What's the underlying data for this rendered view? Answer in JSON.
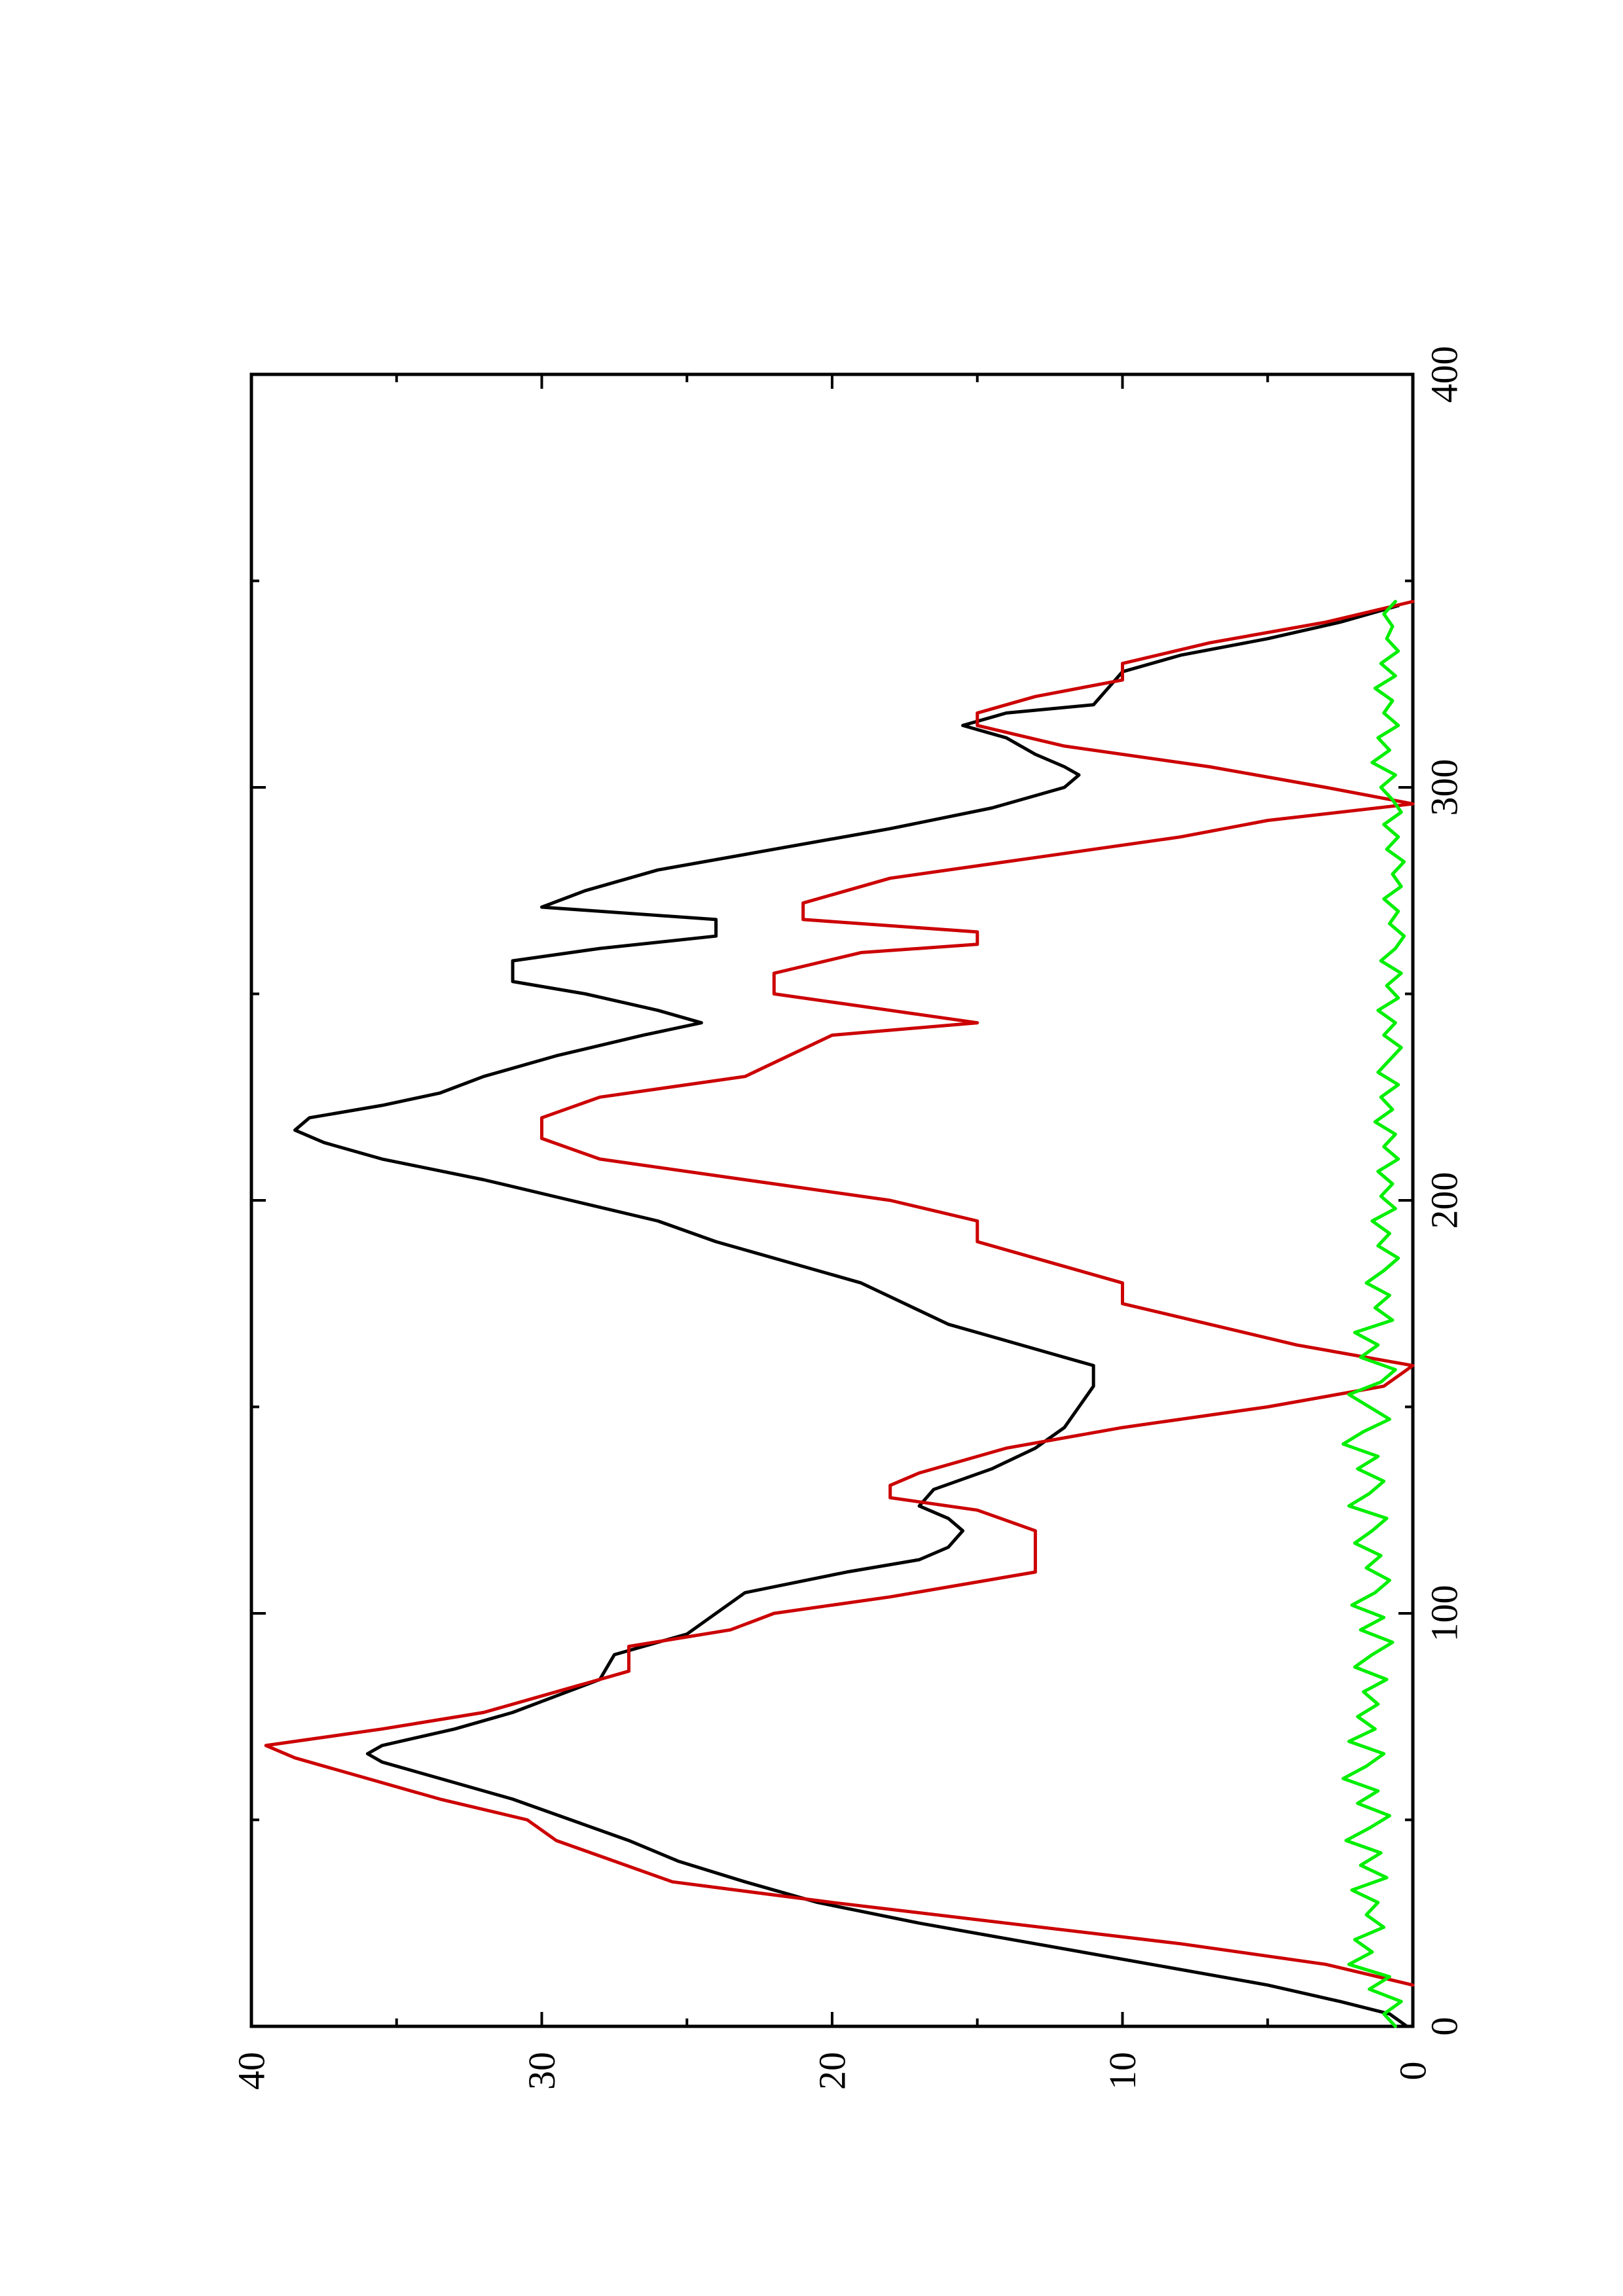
{
  "chart_data": {
    "type": "line",
    "orientation": "rotated 90 degrees counter-clockwise (page in landscape printed on portrait sheet)",
    "title": "",
    "xlabel": "",
    "ylabel": "",
    "xlim": [
      0,
      400
    ],
    "ylim": [
      0,
      40
    ],
    "x_ticks": [
      "0",
      "100",
      "200",
      "300",
      "400"
    ],
    "y_ticks": [
      "0",
      "10",
      "20",
      "30",
      "40"
    ],
    "grid": false,
    "legend": "none",
    "series": [
      {
        "color": "#000000",
        "x": [
          0,
          3,
          6,
          10,
          15,
          20,
          25,
          30,
          35,
          40,
          45,
          50,
          55,
          60,
          64,
          66,
          68,
          72,
          76,
          80,
          84,
          90,
          95,
          100,
          105,
          110,
          113,
          116,
          120,
          123,
          126,
          130,
          135,
          140,
          145,
          150,
          155,
          160,
          163,
          166,
          170,
          175,
          180,
          185,
          190,
          195,
          200,
          205,
          210,
          214,
          217,
          220,
          223,
          226,
          230,
          235,
          240,
          243,
          246,
          250,
          253,
          258,
          261,
          264,
          268,
          271,
          275,
          280,
          285,
          290,
          295,
          300,
          303,
          305,
          308,
          312,
          315,
          318,
          320,
          324,
          328,
          332,
          336,
          340,
          344
        ],
        "y": [
          0.2,
          0.8,
          2.5,
          5.0,
          9.0,
          13.0,
          17.0,
          20.5,
          23.0,
          25.3,
          27.0,
          29.0,
          31.0,
          33.5,
          35.5,
          36.0,
          35.5,
          33.0,
          31.0,
          29.5,
          28.0,
          27.5,
          25.0,
          24.0,
          23.0,
          19.5,
          17.0,
          16.0,
          15.5,
          16.0,
          17.0,
          16.5,
          14.5,
          13.0,
          12.0,
          11.5,
          11.0,
          11.0,
          12.5,
          14.0,
          16.0,
          17.5,
          19.0,
          21.5,
          24.0,
          26.0,
          29.0,
          32.0,
          35.5,
          37.5,
          38.5,
          38.0,
          35.5,
          33.5,
          32.0,
          29.5,
          26.5,
          24.5,
          26.0,
          28.5,
          31.0,
          31.0,
          28.0,
          24.0,
          24.0,
          30.0,
          28.5,
          26.0,
          22.0,
          18.0,
          14.5,
          12.0,
          11.5,
          12.0,
          13.0,
          14.0,
          15.5,
          14.0,
          11.0,
          10.5,
          10.0,
          8.0,
          5.0,
          2.5,
          0.5
        ]
      },
      {
        "color": "#cc0000",
        "x": [
          10,
          15,
          20,
          25,
          30,
          35,
          40,
          45,
          50,
          55,
          60,
          65,
          68,
          72,
          76,
          80,
          86,
          92,
          96,
          100,
          104,
          110,
          115,
          120,
          125,
          128,
          131,
          134,
          140,
          145,
          150,
          155,
          160,
          165,
          170,
          175,
          180,
          190,
          195,
          200,
          205,
          210,
          215,
          220,
          225,
          230,
          240,
          243,
          246,
          250,
          255,
          260,
          262,
          265,
          268,
          272,
          278,
          283,
          288,
          292,
          296,
          300,
          305,
          310,
          315,
          318,
          322,
          326,
          330,
          335,
          340,
          345
        ],
        "y": [
          0.0,
          3.0,
          8.0,
          14.0,
          20.0,
          25.5,
          27.5,
          29.5,
          30.5,
          33.5,
          36.0,
          38.5,
          39.5,
          35.5,
          32.0,
          30.0,
          27.0,
          27.0,
          23.5,
          22.0,
          18.0,
          13.0,
          13.0,
          13.0,
          15.0,
          18.0,
          18.0,
          17.0,
          14.0,
          10.0,
          5.0,
          1.0,
          0.0,
          4.0,
          7.0,
          10.0,
          10.0,
          15.0,
          15.0,
          18.0,
          23.0,
          28.0,
          30.0,
          30.0,
          28.0,
          23.0,
          20.0,
          15.0,
          18.0,
          22.0,
          22.0,
          19.0,
          15.0,
          15.0,
          21.0,
          21.0,
          18.0,
          13.0,
          8.0,
          5.0,
          0.0,
          3.0,
          7.0,
          12.0,
          15.0,
          15.0,
          13.0,
          10.0,
          10.0,
          7.0,
          3.0,
          0.0
        ]
      },
      {
        "color": "#00ee00",
        "x": [
          0,
          3,
          6,
          9,
          12,
          15,
          18,
          21,
          24,
          27,
          30,
          33,
          36,
          39,
          42,
          45,
          48,
          51,
          54,
          57,
          60,
          63,
          66,
          69,
          72,
          75,
          78,
          81,
          84,
          87,
          90,
          93,
          96,
          99,
          102,
          105,
          108,
          111,
          114,
          117,
          120,
          123,
          126,
          129,
          132,
          135,
          138,
          141,
          144,
          147,
          150,
          153,
          156,
          159,
          162,
          165,
          168,
          171,
          174,
          177,
          180,
          183,
          186,
          189,
          192,
          195,
          198,
          201,
          204,
          207,
          210,
          213,
          216,
          219,
          222,
          225,
          228,
          231,
          234,
          237,
          240,
          243,
          246,
          249,
          252,
          255,
          258,
          261,
          264,
          267,
          270,
          273,
          276,
          279,
          282,
          285,
          288,
          291,
          294,
          297,
          300,
          303,
          306,
          309,
          312,
          315,
          318,
          321,
          324,
          327,
          330,
          333,
          336,
          339,
          342,
          345
        ],
        "y": [
          0.6,
          1.0,
          0.4,
          1.5,
          0.8,
          2.2,
          1.4,
          2.0,
          1.0,
          1.6,
          1.2,
          2.1,
          0.9,
          1.8,
          1.1,
          2.3,
          1.5,
          0.8,
          1.9,
          1.2,
          2.4,
          1.6,
          1.0,
          2.2,
          1.3,
          1.9,
          1.2,
          1.7,
          0.9,
          2.0,
          1.4,
          0.7,
          1.8,
          1.0,
          2.1,
          1.3,
          0.8,
          1.6,
          1.1,
          2.0,
          1.4,
          0.9,
          2.2,
          1.5,
          1.0,
          1.9,
          1.2,
          2.4,
          1.7,
          0.8,
          1.5,
          2.2,
          1.1,
          0.6,
          1.8,
          1.2,
          2.0,
          0.7,
          1.3,
          0.8,
          1.6,
          1.0,
          0.5,
          1.2,
          0.8,
          1.4,
          0.6,
          1.1,
          0.7,
          1.2,
          0.5,
          1.0,
          0.6,
          1.3,
          0.7,
          1.1,
          0.5,
          1.2,
          0.8,
          0.4,
          1.0,
          0.6,
          1.2,
          0.5,
          0.9,
          0.4,
          1.1,
          0.6,
          0.3,
          0.8,
          0.5,
          1.0,
          0.4,
          0.7,
          0.3,
          0.9,
          0.5,
          1.0,
          0.4,
          0.7,
          1.1,
          0.6,
          1.4,
          0.8,
          1.2,
          0.5,
          1.0,
          0.7,
          1.3,
          0.6,
          1.1,
          0.5,
          0.9,
          0.7,
          1.0,
          0.6
        ]
      }
    ]
  }
}
